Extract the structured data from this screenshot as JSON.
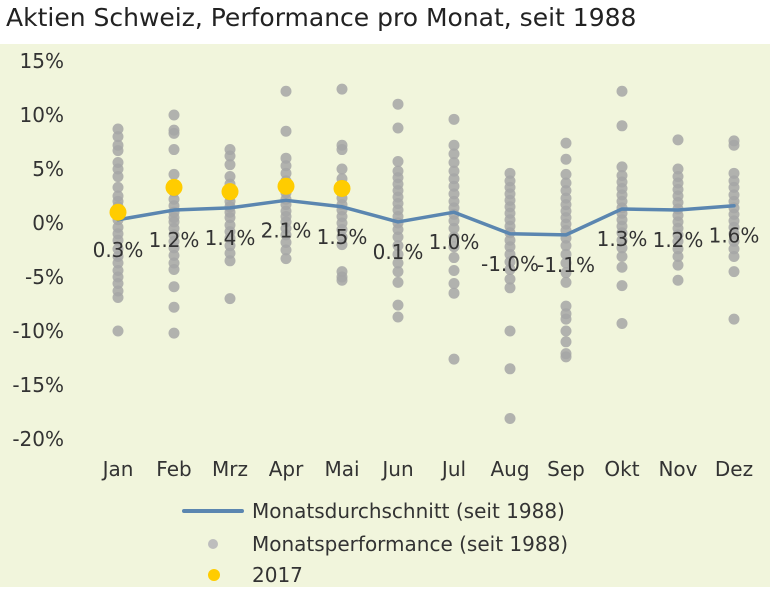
{
  "title": "Aktien Schweiz, Performance pro Monat, seit 1988",
  "colors": {
    "background": "#f1f5dc",
    "average_line": "#5b86b0",
    "monthly_points": "#a6a6a6",
    "year_2017": "#ffcc00",
    "text": "#333333"
  },
  "chart_data": {
    "type": "scatter",
    "title": "Aktien Schweiz, Performance pro Monat, seit 1988",
    "categories": [
      "Jan",
      "Feb",
      "Mrz",
      "Apr",
      "Mai",
      "Jun",
      "Jul",
      "Aug",
      "Sep",
      "Okt",
      "Nov",
      "Dez"
    ],
    "ylim": [
      -20,
      15
    ],
    "yticks": [
      15,
      10,
      5,
      0,
      -5,
      -10,
      -15,
      -20
    ],
    "ytick_labels": [
      "15%",
      "10%",
      "5%",
      "0%",
      "-5%",
      "-10%",
      "-15%",
      "-20%"
    ],
    "grid": false,
    "legend_position": "bottom",
    "series": [
      {
        "name": "Monatsdurchschnitt (seit 1988)",
        "kind": "line",
        "values": [
          0.3,
          1.2,
          1.4,
          2.1,
          1.5,
          0.1,
          1.0,
          -1.0,
          -1.1,
          1.3,
          1.2,
          1.6
        ],
        "labels": [
          "0.3%",
          "1.2%",
          "1.4%",
          "2.1%",
          "1.5%",
          "0.1%",
          "1.0%",
          "-1.0%",
          "-1.1%",
          "1.3%",
          "1.2%",
          "1.6%"
        ]
      },
      {
        "name": "Monatsperformance (seit 1988)",
        "kind": "scatter",
        "points": [
          [
            8.7,
            8.0,
            7.2,
            6.7,
            5.6,
            5.0,
            4.3,
            3.3,
            2.5,
            2.0,
            1.5,
            0.9,
            0.3,
            -0.4,
            -1.0,
            -1.6,
            -2.4,
            -3.1,
            -3.7,
            -4.4,
            -5.0,
            -5.6,
            -6.3,
            -6.9,
            -10.0
          ],
          [
            10.0,
            8.6,
            8.3,
            6.8,
            4.5,
            3.6,
            2.9,
            2.2,
            1.6,
            1.0,
            0.5,
            0.1,
            -0.5,
            -1.1,
            -1.7,
            -2.3,
            -3.0,
            -3.7,
            -4.3,
            -5.9,
            -7.8,
            -10.2
          ],
          [
            6.8,
            6.2,
            5.4,
            4.3,
            3.6,
            3.0,
            2.5,
            2.0,
            1.5,
            1.0,
            0.5,
            -0.2,
            -0.8,
            -1.4,
            -2.1,
            -2.8,
            -3.5,
            -7.0
          ],
          [
            12.2,
            8.5,
            6.0,
            5.3,
            4.6,
            3.9,
            3.3,
            2.8,
            2.2,
            1.7,
            1.1,
            0.6,
            0.1,
            -0.5,
            -1.1,
            -1.8,
            -2.5,
            -3.3
          ],
          [
            12.4,
            7.2,
            6.8,
            5.0,
            4.1,
            3.5,
            2.9,
            2.3,
            1.7,
            1.2,
            0.6,
            0.0,
            -0.6,
            -1.3,
            -2.0,
            -4.5,
            -5.0,
            -5.3
          ],
          [
            11.0,
            8.8,
            5.7,
            4.8,
            4.2,
            3.6,
            3.0,
            2.4,
            1.8,
            1.2,
            0.6,
            0.0,
            -0.6,
            -1.3,
            -2.1,
            -2.9,
            -3.7,
            -4.5,
            -5.5,
            -7.6,
            -8.7
          ],
          [
            9.6,
            7.2,
            6.4,
            5.6,
            4.8,
            4.1,
            3.4,
            2.7,
            2.0,
            1.4,
            0.8,
            0.2,
            -0.5,
            -1.3,
            -2.2,
            -3.2,
            -4.4,
            -5.6,
            -6.5,
            -12.6
          ],
          [
            4.6,
            3.9,
            3.3,
            2.7,
            2.1,
            1.5,
            0.9,
            0.3,
            -0.3,
            -0.9,
            -1.6,
            -2.2,
            -2.9,
            -3.6,
            -4.3,
            -5.2,
            -6.0,
            -10.0,
            -13.5,
            -18.1
          ],
          [
            7.4,
            5.9,
            4.5,
            3.7,
            3.0,
            2.3,
            1.7,
            1.1,
            0.5,
            -0.1,
            -0.7,
            -1.4,
            -2.1,
            -2.9,
            -3.7,
            -4.6,
            -5.5,
            -7.7,
            -8.4,
            -8.9,
            -10.0,
            -11.0,
            -12.1,
            -12.4
          ],
          [
            12.2,
            9.0,
            5.2,
            4.4,
            3.8,
            3.2,
            2.6,
            2.0,
            1.4,
            0.9,
            0.3,
            -0.3,
            -0.9,
            -1.6,
            -2.3,
            -3.1,
            -4.1,
            -5.8,
            -9.3
          ],
          [
            7.7,
            5.0,
            4.3,
            3.7,
            3.1,
            2.5,
            1.9,
            1.3,
            0.7,
            0.1,
            -0.5,
            -1.1,
            -1.7,
            -2.4,
            -3.1,
            -3.9,
            -5.3
          ],
          [
            7.6,
            7.2,
            4.6,
            3.9,
            3.3,
            2.6,
            2.0,
            1.4,
            0.8,
            0.2,
            -0.4,
            -1.0,
            -1.7,
            -2.4,
            -3.1,
            -4.5,
            -8.9
          ]
        ]
      },
      {
        "name": "2017",
        "kind": "scatter",
        "values": [
          1.0,
          3.3,
          2.9,
          3.4,
          3.2,
          null,
          null,
          null,
          null,
          null,
          null,
          null
        ]
      }
    ]
  },
  "legend": [
    {
      "label": "Monatsdurchschnitt (seit 1988)",
      "marker": "line"
    },
    {
      "label": "Monatsperformance (seit 1988)",
      "marker": "gray-dot"
    },
    {
      "label": "2017",
      "marker": "yellow-dot"
    }
  ]
}
